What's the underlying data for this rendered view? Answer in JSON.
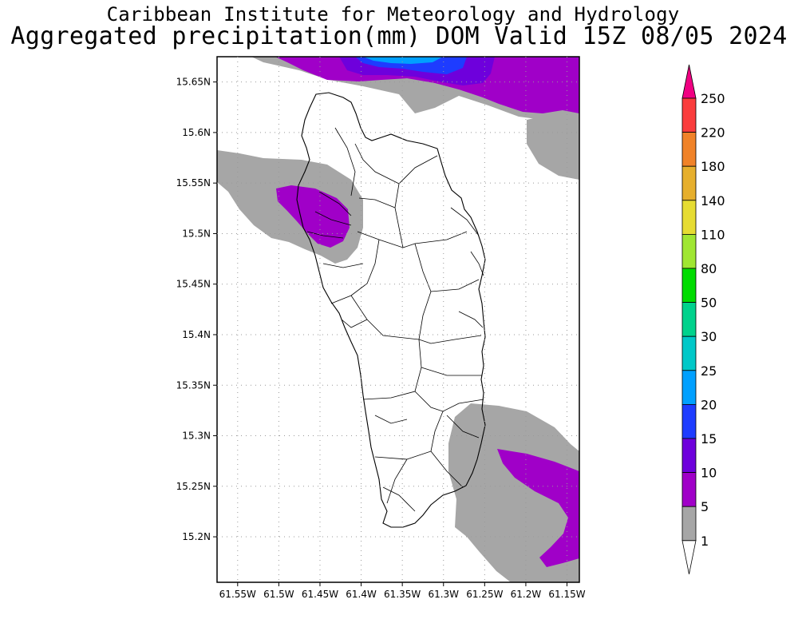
{
  "title": {
    "line1": "Caribbean Institute for Meteorology and Hydrology",
    "line2": "Aggregated precipitation(mm) DOM Valid 15Z 08/05 2024"
  },
  "map": {
    "lon_min": -61.575,
    "lon_max": -61.135,
    "lat_min": 15.155,
    "lat_max": 15.675,
    "x_ticks": [
      {
        "lon": -61.55,
        "label": "61.55W"
      },
      {
        "lon": -61.5,
        "label": "61.5W"
      },
      {
        "lon": -61.45,
        "label": "61.45W"
      },
      {
        "lon": -61.4,
        "label": "61.4W"
      },
      {
        "lon": -61.35,
        "label": "61.35W"
      },
      {
        "lon": -61.3,
        "label": "61.3W"
      },
      {
        "lon": -61.25,
        "label": "61.25W"
      },
      {
        "lon": -61.2,
        "label": "61.2W"
      },
      {
        "lon": -61.15,
        "label": "61.15W"
      }
    ],
    "y_ticks": [
      {
        "lat": 15.65,
        "label": "15.65N"
      },
      {
        "lat": 15.6,
        "label": "15.6N"
      },
      {
        "lat": 15.55,
        "label": "15.55N"
      },
      {
        "lat": 15.5,
        "label": "15.5N"
      },
      {
        "lat": 15.45,
        "label": "15.45N"
      },
      {
        "lat": 15.4,
        "label": "15.4N"
      },
      {
        "lat": 15.35,
        "label": "15.35N"
      },
      {
        "lat": 15.3,
        "label": "15.3N"
      },
      {
        "lat": 15.25,
        "label": "15.25N"
      },
      {
        "lat": 15.2,
        "label": "15.2N"
      }
    ],
    "grid": true
  },
  "colorbar": {
    "levels": [
      "1",
      "5",
      "10",
      "15",
      "20",
      "25",
      "30",
      "50",
      "80",
      "110",
      "140",
      "180",
      "220",
      "250"
    ],
    "colors": [
      "#a6a6a6",
      "#a000c8",
      "#6e00dc",
      "#1e3cff",
      "#00a0ff",
      "#00c8c8",
      "#00d28c",
      "#00dc00",
      "#a0e632",
      "#e6dc32",
      "#e6af2d",
      "#f08228",
      "#fa3c3c",
      "#f00082"
    ]
  },
  "colors": {
    "land_fill": "#ffffff",
    "coast": "#000000",
    "grid": "#999999"
  }
}
